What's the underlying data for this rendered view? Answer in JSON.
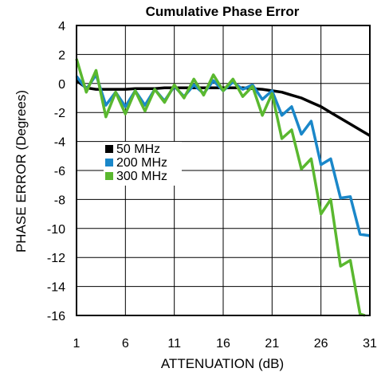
{
  "chart_data": {
    "type": "line",
    "title": "Cumulative Phase Error",
    "xlabel": "ATTENUATION (dB)",
    "ylabel": "PHASE ERROR (Degrees)",
    "xlim": [
      1,
      31
    ],
    "ylim": [
      -16,
      4
    ],
    "xticks": [
      1,
      6,
      11,
      16,
      21,
      26,
      31
    ],
    "yticks": [
      4,
      2,
      0,
      -2,
      -4,
      -6,
      -8,
      -10,
      -12,
      -14,
      -16
    ],
    "grid": true,
    "legend_position": "middle-left",
    "series": [
      {
        "name": "50 MHz",
        "color": "#000000",
        "x": [
          1,
          2,
          3,
          4,
          5,
          6,
          7,
          8,
          9,
          10,
          11,
          12,
          13,
          14,
          15,
          16,
          17,
          18,
          19,
          20,
          21,
          22,
          23,
          24,
          25,
          26,
          27,
          28,
          29,
          30,
          31
        ],
        "y": [
          0.2,
          -0.3,
          -0.4,
          -0.4,
          -0.4,
          -0.4,
          -0.35,
          -0.35,
          -0.35,
          -0.3,
          -0.3,
          -0.3,
          -0.3,
          -0.3,
          -0.3,
          -0.3,
          -0.3,
          -0.3,
          -0.35,
          -0.4,
          -0.5,
          -0.6,
          -0.8,
          -1.0,
          -1.3,
          -1.6,
          -2.0,
          -2.4,
          -2.8,
          -3.2,
          -3.6
        ]
      },
      {
        "name": "200 MHz",
        "color": "#1a87c9",
        "x": [
          1,
          2,
          3,
          4,
          5,
          6,
          7,
          8,
          9,
          10,
          11,
          12,
          13,
          14,
          15,
          16,
          17,
          18,
          19,
          20,
          21,
          22,
          23,
          24,
          25,
          26,
          27,
          28,
          29,
          30,
          31
        ],
        "y": [
          0.5,
          -0.4,
          0.6,
          -1.5,
          -0.6,
          -1.6,
          -0.5,
          -1.5,
          -0.4,
          -1.2,
          -0.2,
          -0.9,
          -0.1,
          -0.7,
          0.2,
          -0.5,
          0.1,
          -0.4,
          -0.1,
          -1.1,
          -0.5,
          -2.2,
          -1.6,
          -3.5,
          -2.6,
          -5.6,
          -5.2,
          -7.9,
          -7.8,
          -10.4,
          -10.5
        ]
      },
      {
        "name": "300 MHz",
        "color": "#5ab82f",
        "x": [
          1,
          2,
          3,
          4,
          5,
          6,
          7,
          8,
          9,
          10,
          11,
          12,
          13,
          14,
          15,
          16,
          17,
          18,
          19,
          20,
          21,
          22,
          23,
          24,
          25,
          26,
          27,
          28,
          29,
          30,
          30.5
        ],
        "y": [
          1.7,
          -0.6,
          0.9,
          -2.3,
          -0.6,
          -2.1,
          -0.5,
          -1.9,
          -0.4,
          -1.3,
          -0.1,
          -1.0,
          0.3,
          -0.8,
          0.6,
          -0.5,
          0.3,
          -0.9,
          -0.2,
          -2.2,
          -0.7,
          -3.8,
          -3.2,
          -5.9,
          -5.2,
          -9.0,
          -8.0,
          -12.6,
          -12.2,
          -15.9,
          -16
        ]
      }
    ]
  }
}
